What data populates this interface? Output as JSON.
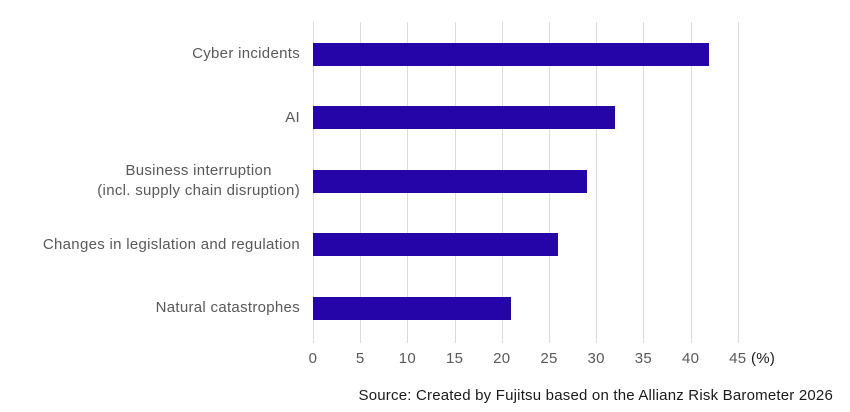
{
  "chart_data": {
    "type": "bar",
    "orientation": "horizontal",
    "title": "",
    "categories": [
      "Cyber incidents",
      "AI",
      "Business interruption\n(incl. supply chain disruption)",
      "Changes in legislation and regulation",
      "Natural catastrophes"
    ],
    "values": [
      42,
      32,
      29,
      26,
      21
    ],
    "xlabel": "",
    "ylabel": "",
    "xlim": [
      0,
      45
    ],
    "ticks": [
      0,
      5,
      10,
      15,
      20,
      25,
      30,
      35,
      40,
      45
    ],
    "unit_label": "(%)",
    "grid": "vertical-only",
    "legend": "none",
    "colors": {
      "bar": "#2605A8",
      "gridline": "#DCDCDC",
      "category_label": "#595959",
      "tick_label": "#595959",
      "unit_label": "#1A1A1A",
      "source_text": "#1A1A1A",
      "background": "#FFFFFF"
    }
  },
  "source": "Source: Created by Fujitsu based on the Allianz Risk Barometer 2026"
}
